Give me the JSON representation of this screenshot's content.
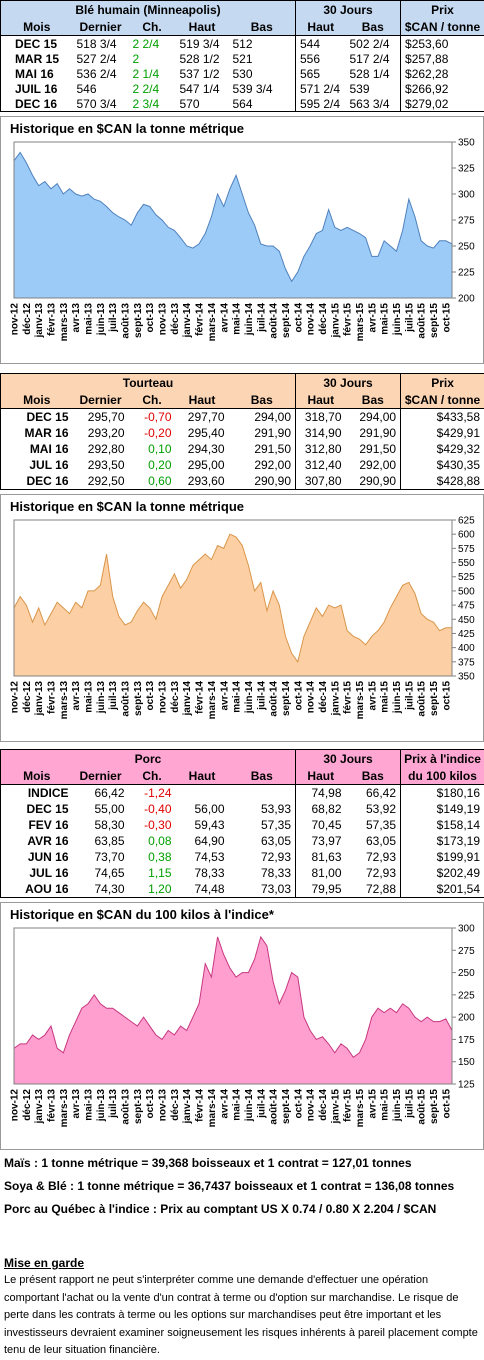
{
  "tables": [
    {
      "title": "Blé humain (Minneapolis)",
      "title2": "30 Jours",
      "title3": "Prix",
      "columns": [
        "Mois",
        "Dernier",
        "Ch.",
        "Haut",
        "Bas",
        "Haut",
        "Bas",
        "$CAN / tonne"
      ],
      "rows": [
        [
          "DEC 15",
          "518 3/4",
          "2 2/4",
          "519 3/4",
          "512",
          "544",
          "502 2/4",
          "$253,60"
        ],
        [
          "MAR 15",
          "527 2/4",
          "2",
          "528 1/2",
          "521",
          "556",
          "517 2/4",
          "$257,88"
        ],
        [
          "MAI 16",
          "536 2/4",
          "2 1/4",
          "537 1/2",
          "530",
          "565",
          "528 1/4",
          "$262,28"
        ],
        [
          "JUIL 16",
          "546",
          "2 2/4",
          "547 1/4",
          "539 3/4",
          "571 2/4",
          "539",
          "$266,92"
        ],
        [
          "DEC 16",
          "570 3/4",
          "2 3/4",
          "570",
          "564",
          "595 2/4",
          "563 3/4",
          "$279,02"
        ]
      ]
    },
    {
      "title": "Tourteau",
      "title2": "30 Jours",
      "title3": "Prix",
      "columns": [
        "Mois",
        "Dernier",
        "Ch.",
        "Haut",
        "Bas",
        "Haut",
        "Bas",
        "$CAN / tonne"
      ],
      "rows": [
        [
          "DEC 15",
          "295,70",
          "-0,70",
          "297,70",
          "294,00",
          "318,70",
          "294,00",
          "$433,58"
        ],
        [
          "MAR 16",
          "293,20",
          "-0,20",
          "295,40",
          "291,90",
          "314,90",
          "291,90",
          "$429,91"
        ],
        [
          "MAI 16",
          "292,80",
          "0,10",
          "294,30",
          "291,50",
          "312,80",
          "291,50",
          "$429,32"
        ],
        [
          "JUL 16",
          "293,50",
          "0,20",
          "295,00",
          "292,00",
          "312,40",
          "292,00",
          "$430,35"
        ],
        [
          "DEC 16",
          "292,50",
          "0,60",
          "293,60",
          "290,90",
          "307,80",
          "290,90",
          "$428,88"
        ]
      ]
    },
    {
      "title": "Porc",
      "title2": "30 Jours",
      "title3": "Prix à l'indice",
      "columns": [
        "Mois",
        "Dernier",
        "Ch.",
        "Haut",
        "Bas",
        "Haut",
        "Bas",
        "du 100 kilos"
      ],
      "rows": [
        [
          "INDICE",
          "66,42",
          "-1,24",
          null,
          null,
          "74,98",
          "66,42",
          "$180,16"
        ],
        [
          "DEC 15",
          "55,00",
          "-0,40",
          "56,00",
          "53,93",
          "68,82",
          "53,92",
          "$149,19"
        ],
        [
          "FEV 16",
          "58,30",
          "-0,30",
          "59,43",
          "57,35",
          "70,45",
          "57,35",
          "$158,14"
        ],
        [
          "AVR 16",
          "63,85",
          "0,08",
          "64,90",
          "63,05",
          "73,97",
          "63,05",
          "$173,19"
        ],
        [
          "JUN 16",
          "73,70",
          "0,38",
          "74,53",
          "72,93",
          "81,63",
          "72,93",
          "$199,91"
        ],
        [
          "JUL 16",
          "74,65",
          "1,15",
          "78,33",
          "78,33",
          "81,00",
          "72,93",
          "$202,49"
        ],
        [
          "AOU 16",
          "74,30",
          "1,20",
          "74,48",
          "73,03",
          "79,95",
          "72,88",
          "$201,54"
        ]
      ]
    }
  ],
  "charts": [
    {
      "type": "area",
      "title": "Historique en $CAN la tonne métrique",
      "color": "#9ccbf7",
      "line_color": "#4f81bd",
      "ylim": [
        200,
        350
      ],
      "yticks": [
        200,
        225,
        250,
        275,
        300,
        325,
        350
      ],
      "categories": [
        "nov-12",
        null,
        "déc-12",
        null,
        "janv-13",
        null,
        "févr-13",
        null,
        "mars-13",
        null,
        "avr-13",
        null,
        "mai-13",
        null,
        "juin-13",
        null,
        "juil-13",
        null,
        "août-13",
        null,
        "sept-13",
        null,
        "oct-13",
        null,
        "nov-13",
        null,
        "déc-13",
        null,
        "janv-14",
        null,
        "févr-14",
        null,
        "mars-14",
        null,
        "avr-14",
        null,
        "mai-14",
        null,
        "juin-14",
        null,
        "juil-14",
        null,
        "août-14",
        null,
        "sept-14",
        null,
        "oct-14",
        null,
        "nov-14",
        null,
        "déc-14",
        null,
        "janv-15",
        null,
        "févr-15",
        null,
        "mars-15",
        null,
        "avr-15",
        null,
        "mai-15",
        null,
        "juin-15",
        null,
        "juil-15",
        null,
        "août-15",
        null,
        "sept-15",
        null,
        "oct-15",
        null
      ],
      "values": [
        332,
        340,
        330,
        318,
        308,
        312,
        305,
        310,
        300,
        305,
        300,
        298,
        300,
        295,
        293,
        288,
        282,
        278,
        275,
        270,
        282,
        290,
        288,
        280,
        275,
        268,
        265,
        258,
        250,
        248,
        252,
        262,
        278,
        300,
        288,
        305,
        318,
        300,
        282,
        270,
        252,
        250,
        250,
        245,
        228,
        216,
        225,
        240,
        250,
        262,
        265,
        285,
        268,
        265,
        268,
        265,
        262,
        258,
        240,
        240,
        255,
        250,
        245,
        265,
        295,
        278,
        255,
        250,
        248,
        255,
        255,
        252
      ]
    },
    {
      "type": "area",
      "title": "Historique en $CAN la tonne métrique",
      "color": "#fcd0a4",
      "line_color": "#d9954a",
      "ylim": [
        350,
        625
      ],
      "yticks": [
        350,
        375,
        400,
        425,
        450,
        475,
        500,
        525,
        550,
        575,
        600,
        625
      ],
      "categories": [
        "nov-12",
        null,
        "déc-12",
        null,
        "janv-13",
        null,
        "févr-13",
        null,
        "mars-13",
        null,
        "avr-13",
        null,
        "mai-13",
        null,
        "juin-13",
        null,
        "juil-13",
        null,
        "août-13",
        null,
        "sept-13",
        null,
        "oct-13",
        null,
        "nov-13",
        null,
        "déc-13",
        null,
        "janv-14",
        null,
        "févr-14",
        null,
        "mars-14",
        null,
        "avr-14",
        null,
        "mai-14",
        null,
        "juin-14",
        null,
        "juil-14",
        null,
        "août-14",
        null,
        "sept-14",
        null,
        "oct-14",
        null,
        "nov-14",
        null,
        "déc-14",
        null,
        "janv-15",
        null,
        "févr-15",
        null,
        "mars-15",
        null,
        "avr-15",
        null,
        "mai-15",
        null,
        "juin-15",
        null,
        "juil-15",
        null,
        "août-15",
        null,
        "sept-15",
        null,
        "oct-15",
        null
      ],
      "values": [
        470,
        490,
        475,
        445,
        470,
        440,
        460,
        480,
        470,
        460,
        480,
        470,
        500,
        500,
        510,
        565,
        490,
        455,
        440,
        445,
        465,
        480,
        470,
        450,
        490,
        510,
        530,
        505,
        520,
        545,
        555,
        565,
        555,
        580,
        575,
        600,
        595,
        580,
        545,
        500,
        515,
        465,
        500,
        475,
        420,
        390,
        375,
        420,
        445,
        470,
        455,
        475,
        470,
        475,
        430,
        420,
        415,
        405,
        420,
        430,
        445,
        470,
        490,
        510,
        515,
        495,
        460,
        450,
        445,
        430,
        435,
        435
      ]
    },
    {
      "type": "area",
      "title": "Historique en $CAN du 100 kilos à l'indice*",
      "color": "#ff9fd0",
      "line_color": "#c8367f",
      "ylim": [
        125,
        300
      ],
      "yticks": [
        125,
        150,
        175,
        200,
        225,
        250,
        275,
        300
      ],
      "categories": [
        "nov-12",
        null,
        "déc-12",
        null,
        "janv-13",
        null,
        "févr-13",
        null,
        "mars-13",
        null,
        "avr-13",
        null,
        "mai-13",
        null,
        "juin-13",
        null,
        "juil-13",
        null,
        "août-13",
        null,
        "sept-13",
        null,
        "oct-13",
        null,
        "nov-13",
        null,
        "déc-13",
        null,
        "janv-14",
        null,
        "févr-14",
        null,
        "mars-14",
        null,
        "avr-14",
        null,
        "mai-14",
        null,
        "juin-14",
        null,
        "juil-14",
        null,
        "août-14",
        null,
        "sept-14",
        null,
        "oct-14",
        null,
        "nov-14",
        null,
        "déc-14",
        null,
        "janv-15",
        null,
        "févr-15",
        null,
        "mars-15",
        null,
        "avr-15",
        null,
        "mai-15",
        null,
        "juin-15",
        null,
        "juil-15",
        null,
        "août-15",
        null,
        "sept-15",
        null,
        "oct-15",
        null
      ],
      "values": [
        165,
        170,
        170,
        180,
        175,
        180,
        190,
        165,
        160,
        180,
        195,
        210,
        215,
        225,
        215,
        210,
        210,
        205,
        200,
        195,
        190,
        200,
        190,
        180,
        175,
        185,
        180,
        190,
        185,
        200,
        215,
        260,
        245,
        290,
        270,
        255,
        245,
        250,
        250,
        265,
        290,
        280,
        240,
        215,
        230,
        250,
        245,
        200,
        185,
        175,
        178,
        170,
        160,
        170,
        165,
        155,
        160,
        175,
        200,
        210,
        205,
        210,
        205,
        215,
        210,
        200,
        195,
        200,
        195,
        195,
        198,
        185
      ]
    }
  ],
  "footer": {
    "lines": [
      "Maïs : 1 tonne métrique = 39,368 boisseaux et 1 contrat = 127,01 tonnes",
      "Soya & Blé : 1 tonne métrique = 36,7437 boisseaux  et 1 contrat = 136,08 tonnes",
      "Porc au Québec à l'indice : Prix au comptant US X 0.74 / 0.80 X 2.204 / $CAN"
    ],
    "warning_title": "Mise en garde",
    "warning_text": "Le présent rapport ne peut s'interpréter comme une demande d'effectuer une opération comportant l'achat ou la vente d'un contrat à terme ou d'option sur marchandise. Le risque de perte dans les contrats à terme ou les options sur marchandises peut être important et les investisseurs devraient examiner soigneusement les risques inhérents à pareil placement compte tenu de leur situation financière."
  }
}
